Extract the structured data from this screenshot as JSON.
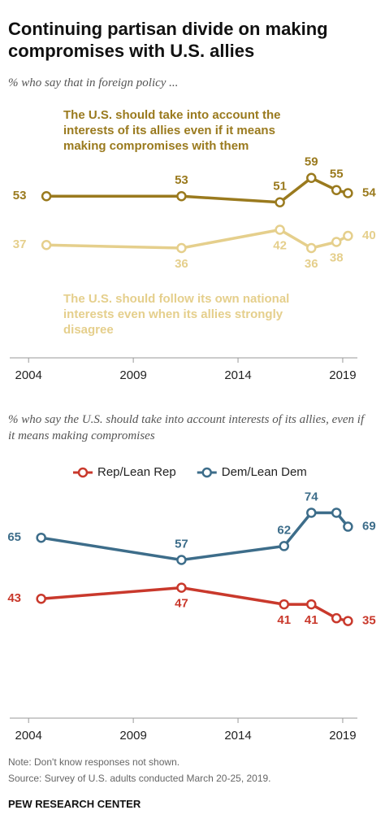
{
  "title": "Continuing partisan divide on making compromises with U.S. allies",
  "chart_data": [
    {
      "type": "line",
      "subtitle": "% who say that in foreign policy ...",
      "x": [
        2004.85,
        2011.3,
        2016.0,
        2017.5,
        2018.7,
        2019.25
      ],
      "xlim": [
        2003.1,
        2019.7
      ],
      "xticks": [
        2004,
        2009,
        2014,
        2019
      ],
      "ylim": [
        0,
        80
      ],
      "legend": false,
      "series": [
        {
          "name": "The U.S. should take into account the interests of its allies even if it means making compromises with them",
          "color": "#9a7a1e",
          "values": [
            53,
            53,
            51,
            59,
            55,
            54
          ]
        },
        {
          "name": "The U.S. should follow its own national interests even when its allies strongly disagree",
          "color": "#e5cf8c",
          "values": [
            37,
            36,
            42,
            36,
            38,
            40
          ]
        }
      ]
    },
    {
      "type": "line",
      "subtitle": "% who say the U.S. should take into account interests of its allies, even if it means making compromises",
      "x": [
        2004.6,
        2011.3,
        2016.2,
        2017.5,
        2018.7,
        2019.25
      ],
      "xlim": [
        2003.1,
        2019.7
      ],
      "xticks": [
        2004,
        2009,
        2014,
        2019
      ],
      "ylim": [
        0,
        80
      ],
      "legend": true,
      "series": [
        {
          "name": "Rep/Lean Rep",
          "color": "#c9392c",
          "values": [
            43,
            47,
            41,
            41,
            36,
            35
          ],
          "value_labels": [
            "43",
            "47",
            "41",
            "41",
            null,
            "35"
          ]
        },
        {
          "name": "Dem/Lean Dem",
          "color": "#3d6d8a",
          "values": [
            65,
            57,
            62,
            74,
            74,
            69
          ],
          "value_labels": [
            "65",
            "57",
            "62",
            "74",
            null,
            "69"
          ]
        }
      ]
    }
  ],
  "note": "Note: Don't know responses not shown.",
  "source": "Source: Survey of U.S. adults conducted March 20-25, 2019.",
  "credit": "PEW RESEARCH CENTER"
}
